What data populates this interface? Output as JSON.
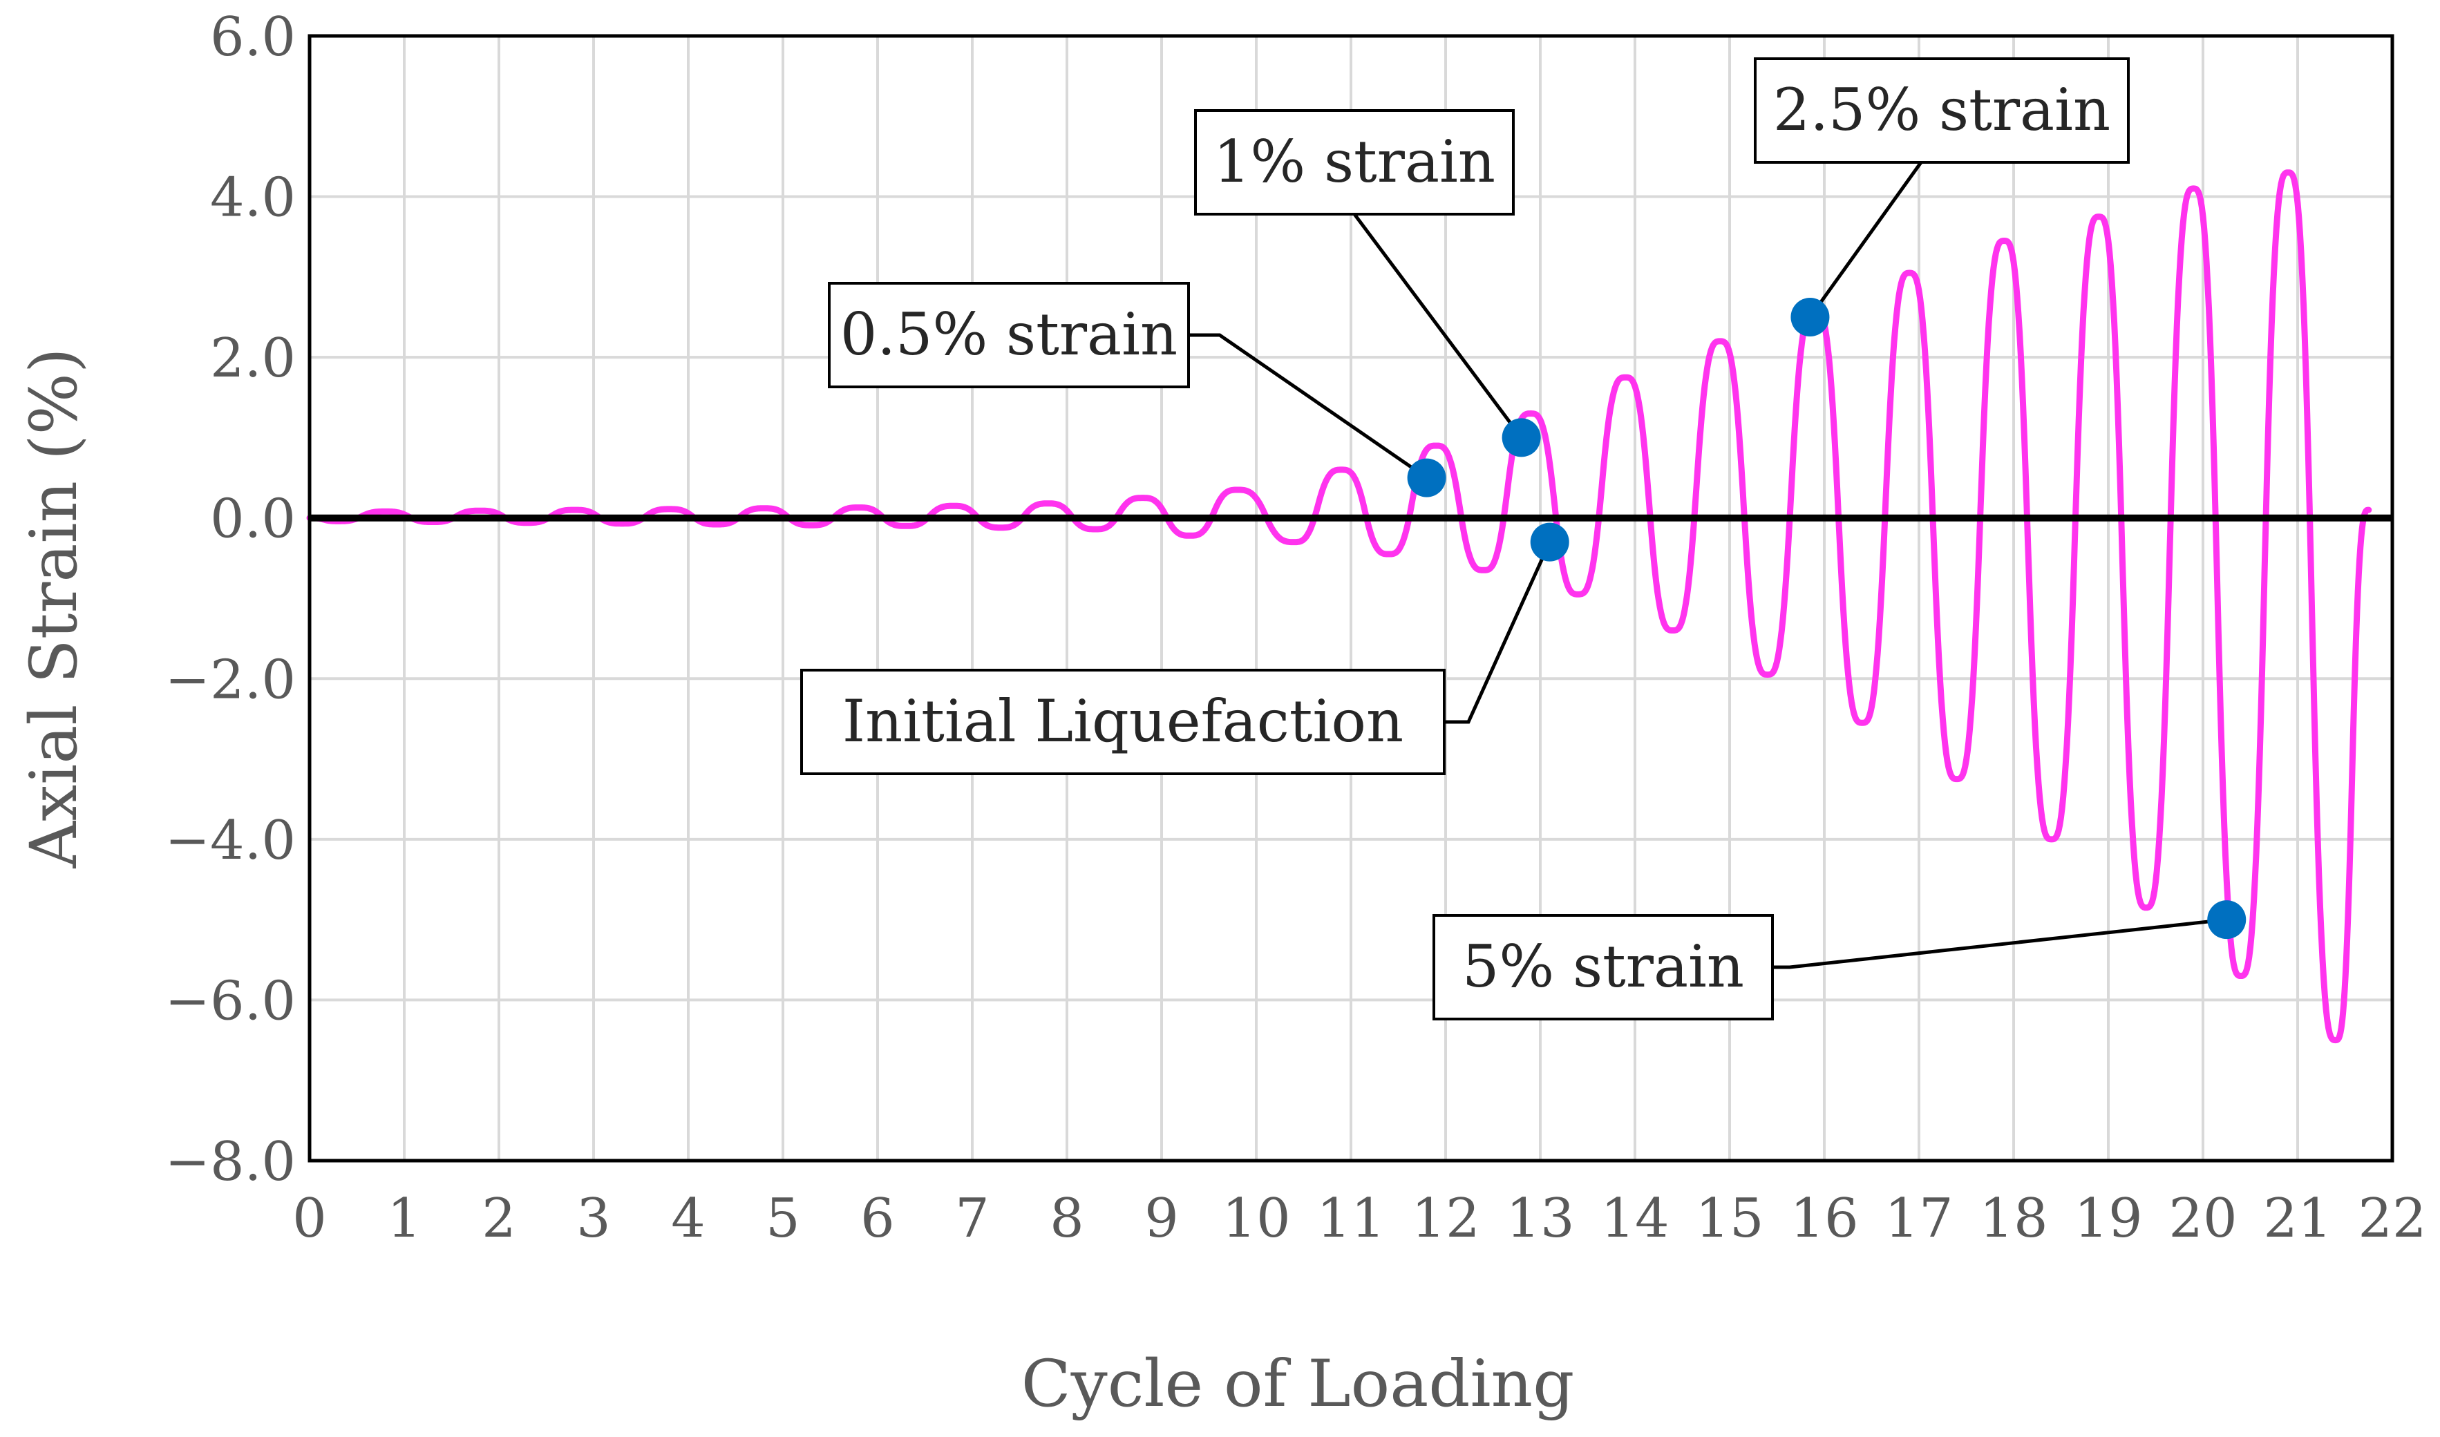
{
  "chart_data": {
    "type": "line",
    "title": "",
    "xlabel": "Cycle of Loading",
    "ylabel": "Axial Strain (%)",
    "xlim": [
      0,
      22
    ],
    "ylim": [
      -8.0,
      6.0
    ],
    "x_ticks": [
      "0",
      "1",
      "2",
      "3",
      "4",
      "5",
      "6",
      "7",
      "8",
      "9",
      "10",
      "11",
      "12",
      "13",
      "14",
      "15",
      "16",
      "17",
      "18",
      "19",
      "20",
      "21",
      "22"
    ],
    "y_ticks": [
      "6.0",
      "4.0",
      "2.0",
      "0.0",
      "−2.0",
      "−4.0",
      "−6.0",
      "−8.0"
    ],
    "grid": true,
    "colors": {
      "series": "#ff33ee",
      "marker": "#0070c0",
      "zero_line": "#000000",
      "grid": "#d9d9d9"
    },
    "series": [
      {
        "name": "Axial Strain",
        "cycles_end": 21.75,
        "peaks": [
          {
            "x": 0.8,
            "y": 0.08
          },
          {
            "x": 1.8,
            "y": 0.09
          },
          {
            "x": 2.8,
            "y": 0.1
          },
          {
            "x": 3.8,
            "y": 0.11
          },
          {
            "x": 4.8,
            "y": 0.12
          },
          {
            "x": 5.8,
            "y": 0.13
          },
          {
            "x": 6.8,
            "y": 0.15
          },
          {
            "x": 7.8,
            "y": 0.18
          },
          {
            "x": 8.8,
            "y": 0.25
          },
          {
            "x": 9.8,
            "y": 0.35
          },
          {
            "x": 10.9,
            "y": 0.6
          },
          {
            "x": 11.9,
            "y": 0.9
          },
          {
            "x": 12.9,
            "y": 1.3
          },
          {
            "x": 13.9,
            "y": 1.75
          },
          {
            "x": 14.9,
            "y": 2.2
          },
          {
            "x": 15.9,
            "y": 2.6
          },
          {
            "x": 16.9,
            "y": 3.05
          },
          {
            "x": 17.9,
            "y": 3.45
          },
          {
            "x": 18.9,
            "y": 3.75
          },
          {
            "x": 19.9,
            "y": 4.1
          },
          {
            "x": 20.9,
            "y": 4.3
          }
        ],
        "troughs": [
          {
            "x": 0.3,
            "y": -0.04
          },
          {
            "x": 1.3,
            "y": -0.05
          },
          {
            "x": 2.3,
            "y": -0.06
          },
          {
            "x": 3.3,
            "y": -0.07
          },
          {
            "x": 4.3,
            "y": -0.08
          },
          {
            "x": 5.3,
            "y": -0.09
          },
          {
            "x": 6.3,
            "y": -0.1
          },
          {
            "x": 7.3,
            "y": -0.12
          },
          {
            "x": 8.3,
            "y": -0.14
          },
          {
            "x": 9.3,
            "y": -0.22
          },
          {
            "x": 10.4,
            "y": -0.3
          },
          {
            "x": 11.4,
            "y": -0.45
          },
          {
            "x": 12.4,
            "y": -0.65
          },
          {
            "x": 13.4,
            "y": -0.95
          },
          {
            "x": 14.4,
            "y": -1.4
          },
          {
            "x": 15.4,
            "y": -1.95
          },
          {
            "x": 16.4,
            "y": -2.55
          },
          {
            "x": 17.4,
            "y": -3.25
          },
          {
            "x": 18.4,
            "y": -4.0
          },
          {
            "x": 19.4,
            "y": -4.85
          },
          {
            "x": 20.4,
            "y": -5.7
          },
          {
            "x": 21.4,
            "y": -6.5
          }
        ]
      }
    ],
    "annotations": [
      {
        "label": "0.5% strain",
        "x": 11.8,
        "y": 0.5
      },
      {
        "label": "1% strain",
        "x": 12.8,
        "y": 1.0
      },
      {
        "label": "2.5% strain",
        "x": 15.85,
        "y": 2.5
      },
      {
        "label": "Initial Liquefaction",
        "x": 13.1,
        "y": -0.3
      },
      {
        "label": "5% strain",
        "x": 20.25,
        "y": -5.0
      }
    ]
  }
}
